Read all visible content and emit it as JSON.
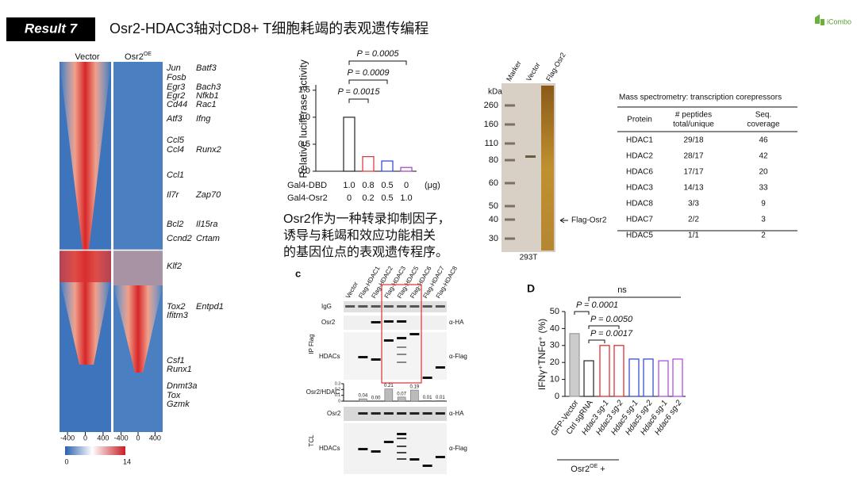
{
  "header": {
    "badge": "Result 7",
    "title": "Osr2-HDAC3轴对CD8+ T细胞耗竭的表观遗传编程",
    "logo": "iCombo"
  },
  "heatmap": {
    "columns": [
      {
        "label": "Vector"
      },
      {
        "label": "Osr2",
        "sup": "OE"
      }
    ],
    "genes_left": [
      "Jun",
      "Fosb",
      "Egr3",
      "Egr2",
      "Cd44",
      "Atf3",
      "Ccl5",
      "Ccl4",
      "Ccl1",
      "Il7r",
      "Bcl2",
      "Ccnd2",
      "Klf2",
      "Tox2",
      "Ifitm3",
      "Csf1",
      "Runx1",
      "Dnmt3a",
      "Tox",
      "Gzmk"
    ],
    "genes_right": [
      "Batf3",
      "Bach3",
      "Nfkb1",
      "Rac1",
      "Ifng",
      "Runx2",
      "Zap70",
      "Il15ra",
      "Crtam",
      "Entpd1"
    ],
    "xlim": [
      -580,
      580
    ],
    "xticks": [
      -400,
      0,
      400
    ],
    "colorbar_ticks": [
      0,
      14
    ]
  },
  "luciferase": {
    "type": "bar",
    "y_label": "Relative luciferase activity",
    "values": [
      1.0,
      0.27,
      0.19,
      0.07
    ],
    "colors": [
      "#222222",
      "#e03030",
      "#2a3fd0",
      "#a040c8"
    ],
    "fills": [
      "#ffffff",
      "#ffffff",
      "#ffffff",
      "#ffffff"
    ],
    "ylim": [
      0,
      1.6
    ],
    "yticks": [
      {
        "value": 0,
        "label": "0.0"
      },
      0.5,
      {
        "value": 1,
        "label": "1.0"
      },
      1.5
    ],
    "p_values": [
      "P = 0.0015",
      "P = 0.0009",
      "P = 0.0005"
    ],
    "conditions": [
      {
        "name": "Gal4-DBD",
        "values": [
          "1.0",
          "0.8",
          "0.5",
          "0"
        ]
      },
      {
        "name": "Gal4-Osr2",
        "values": [
          "0",
          "0.2",
          "0.5",
          "1.0"
        ]
      }
    ],
    "unit": "(μg)"
  },
  "summary": [
    "Osr2作为一种转录抑制因子，",
    "诱导与耗竭和效应功能相关",
    "的基因位点的表观遗传程序。"
  ],
  "gel": {
    "unit": "kDa",
    "lanes": [
      "Marker",
      "Vector",
      "Flag-Osr2"
    ],
    "markers": [
      260,
      160,
      110,
      80,
      60,
      50,
      40,
      30
    ],
    "arrow_label": "Flag-Osr2",
    "cell": "293T"
  },
  "table": {
    "title": "Mass spectrometry: transcription corepressors",
    "header": [
      [
        "Protein"
      ],
      [
        "# peptides",
        "total/unique"
      ],
      [
        "Seq.",
        "coverage"
      ]
    ],
    "rows": [
      [
        "HDAC1",
        "29/18",
        "46"
      ],
      [
        "HDAC2",
        "28/17",
        "42"
      ],
      [
        "HDAC6",
        "17/17",
        "20"
      ],
      [
        "HDAC3",
        "14/13",
        "33"
      ],
      [
        "HDAC8",
        "3/3",
        "9"
      ],
      [
        "HDAC7",
        "2/2",
        "3"
      ],
      [
        "HDAC5",
        "1/1",
        "2"
      ]
    ]
  },
  "coip": {
    "letter": "c",
    "lanes": [
      "Vector",
      "Flag-HDAC1",
      "Flag-HDAC2",
      "Flag-HDAC3",
      "Flag-HDAC5",
      "Flag-HDAC6",
      "Flag-HDAC7",
      "Flag-HDAC8"
    ],
    "ip_label": "IP Flag",
    "rows": [
      "IgG",
      "Osr2",
      "HDACs"
    ],
    "antibodies": [
      "α-HA",
      "α-Flag"
    ],
    "ratio": {
      "label": "Osr2/HDAC",
      "ylim": [
        0,
        0.3
      ],
      "yticks": [
        0,
        0.1,
        0.2,
        0.3
      ],
      "values": [
        0.04,
        0,
        0.21,
        0.07,
        0.19,
        0.01,
        0.01
      ],
      "value_labels": [
        "0.04",
        "0.00",
        "0.21",
        "0.07",
        "0.19",
        "0.01",
        "0.01"
      ]
    },
    "tcl": {
      "label": "TCL",
      "rows": [
        "Osr2",
        "HDACs"
      ],
      "antibodies": [
        "α-HA",
        "α-Flag"
      ]
    }
  },
  "ifn": {
    "letter": "D",
    "type": "bar",
    "y_label": "IFNγ⁺TNFα⁺ (%)",
    "categories": [
      "GFP-Vector",
      "Ctrl sgRNA",
      "Hdac3 sg-1",
      "Hdac3 sg-2",
      "Hdac5 sg-1",
      "Hdac5 sg-2",
      "Hdac6 sg-1",
      "Hdac6 sg-2"
    ],
    "values": [
      37,
      21,
      30,
      30,
      22,
      22,
      21,
      22
    ],
    "colors": [
      "#999999",
      "#222222",
      "#e02020",
      "#e02020",
      "#2a3fd0",
      "#2a3fd0",
      "#b040e0",
      "#b040e0"
    ],
    "fills": [
      "#cccccc",
      "#ffffff",
      "#ffffff",
      "#ffffff",
      "#ffffff",
      "#ffffff",
      "#ffffff",
      "#ffffff"
    ],
    "ylim": [
      0,
      50
    ],
    "yticks": [
      0,
      10,
      20,
      30,
      40,
      50
    ],
    "p_values": [
      "P = 0.0001",
      "P = 0.0050",
      "P = 0.0017",
      "ns"
    ],
    "group": {
      "base": "Osr2",
      "sup": "OE",
      "suffix": "+"
    }
  }
}
